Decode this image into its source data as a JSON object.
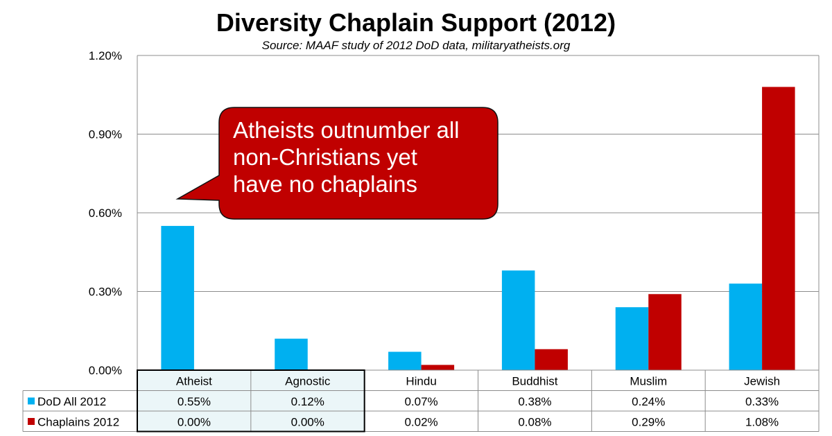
{
  "chart_data": {
    "type": "bar",
    "title": "Diversity Chaplain Support (2012)",
    "subtitle": "Source: MAAF study of 2012 DoD data, militaryatheists.org",
    "categories": [
      "Atheist",
      "Agnostic",
      "Hindu",
      "Buddhist",
      "Muslim",
      "Jewish"
    ],
    "series": [
      {
        "name": "DoD All 2012",
        "color": "#00b0f0",
        "values": [
          0.55,
          0.12,
          0.07,
          0.38,
          0.24,
          0.33
        ],
        "labels": [
          "0.55%",
          "0.12%",
          "0.07%",
          "0.38%",
          "0.24%",
          "0.33%"
        ]
      },
      {
        "name": "Chaplains 2012",
        "color": "#c00000",
        "values": [
          0.0,
          0.0,
          0.02,
          0.08,
          0.29,
          1.08
        ],
        "labels": [
          "0.00%",
          "0.00%",
          "0.02%",
          "0.08%",
          "0.29%",
          "1.08%"
        ]
      }
    ],
    "ylim": [
      0,
      1.2
    ],
    "yticks": [
      0,
      0.3,
      0.6,
      0.9,
      1.2
    ],
    "ytick_labels": [
      "0.00%",
      "0.30%",
      "0.60%",
      "0.90%",
      "1.20%"
    ],
    "grid": true,
    "legend": "data-table",
    "highlighted_categories": [
      "Atheist",
      "Agnostic"
    ],
    "highlight_color": "#ebf6f8",
    "annotation": {
      "lines": [
        "Atheists outnumber all",
        "non-Christians yet",
        "have no chaplains"
      ],
      "fill": "#c00000",
      "points_to": "Atheist"
    }
  }
}
